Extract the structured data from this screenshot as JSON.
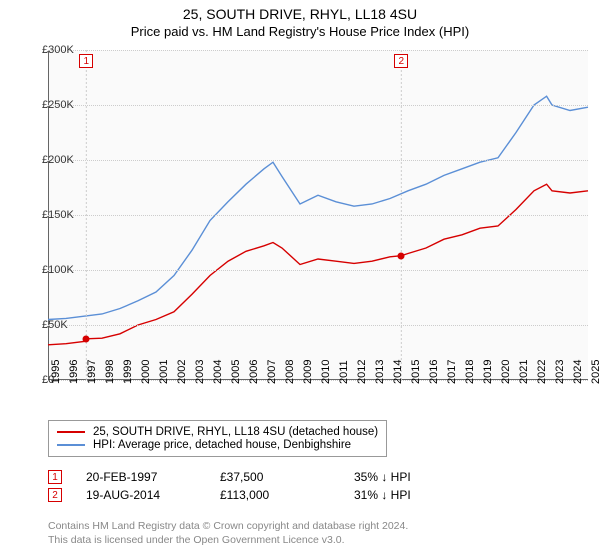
{
  "title": "25, SOUTH DRIVE, RHYL, LL18 4SU",
  "subtitle": "Price paid vs. HM Land Registry's House Price Index (HPI)",
  "chart": {
    "type": "line",
    "background_color": "#fafafa",
    "grid_color": "#cccccc",
    "axis_color": "#666666",
    "x_years": [
      1995,
      1996,
      1997,
      1998,
      1999,
      2000,
      2001,
      2002,
      2003,
      2004,
      2005,
      2006,
      2007,
      2008,
      2009,
      2010,
      2011,
      2012,
      2013,
      2014,
      2015,
      2016,
      2017,
      2018,
      2019,
      2020,
      2021,
      2022,
      2023,
      2024,
      2025
    ],
    "y_ticks": [
      0,
      50000,
      100000,
      150000,
      200000,
      250000,
      300000
    ],
    "y_tick_labels": [
      "£0",
      "£50K",
      "£100K",
      "£150K",
      "£200K",
      "£250K",
      "£300K"
    ],
    "ylim": [
      0,
      300000
    ],
    "label_fontsize": 11,
    "series": [
      {
        "name": "price_paid",
        "color": "#d60000",
        "line_width": 1.4,
        "data": [
          [
            1995,
            32000
          ],
          [
            1996,
            33000
          ],
          [
            1997,
            35000
          ],
          [
            1997.13,
            37500
          ],
          [
            1998,
            38000
          ],
          [
            1999,
            42000
          ],
          [
            2000,
            50000
          ],
          [
            2001,
            55000
          ],
          [
            2002,
            62000
          ],
          [
            2003,
            78000
          ],
          [
            2004,
            95000
          ],
          [
            2005,
            108000
          ],
          [
            2006,
            117000
          ],
          [
            2007,
            122000
          ],
          [
            2007.5,
            125000
          ],
          [
            2008,
            120000
          ],
          [
            2009,
            105000
          ],
          [
            2010,
            110000
          ],
          [
            2011,
            108000
          ],
          [
            2012,
            106000
          ],
          [
            2013,
            108000
          ],
          [
            2014,
            112000
          ],
          [
            2014.63,
            113000
          ],
          [
            2015,
            115000
          ],
          [
            2016,
            120000
          ],
          [
            2017,
            128000
          ],
          [
            2018,
            132000
          ],
          [
            2019,
            138000
          ],
          [
            2020,
            140000
          ],
          [
            2021,
            155000
          ],
          [
            2022,
            172000
          ],
          [
            2022.7,
            178000
          ],
          [
            2023,
            172000
          ],
          [
            2024,
            170000
          ],
          [
            2025,
            172000
          ]
        ]
      },
      {
        "name": "hpi",
        "color": "#5b8fd6",
        "line_width": 1.4,
        "data": [
          [
            1995,
            55000
          ],
          [
            1996,
            56000
          ],
          [
            1997,
            58000
          ],
          [
            1998,
            60000
          ],
          [
            1999,
            65000
          ],
          [
            2000,
            72000
          ],
          [
            2001,
            80000
          ],
          [
            2002,
            95000
          ],
          [
            2003,
            118000
          ],
          [
            2004,
            145000
          ],
          [
            2005,
            162000
          ],
          [
            2006,
            178000
          ],
          [
            2007,
            192000
          ],
          [
            2007.5,
            198000
          ],
          [
            2008,
            185000
          ],
          [
            2009,
            160000
          ],
          [
            2010,
            168000
          ],
          [
            2011,
            162000
          ],
          [
            2012,
            158000
          ],
          [
            2013,
            160000
          ],
          [
            2014,
            165000
          ],
          [
            2015,
            172000
          ],
          [
            2016,
            178000
          ],
          [
            2017,
            186000
          ],
          [
            2018,
            192000
          ],
          [
            2019,
            198000
          ],
          [
            2020,
            202000
          ],
          [
            2021,
            225000
          ],
          [
            2022,
            250000
          ],
          [
            2022.7,
            258000
          ],
          [
            2023,
            250000
          ],
          [
            2024,
            245000
          ],
          [
            2025,
            248000
          ]
        ]
      }
    ],
    "sale_markers": [
      {
        "n": "1",
        "year": 1997.13,
        "price": 37500,
        "color": "#d60000"
      },
      {
        "n": "2",
        "year": 2014.63,
        "price": 113000,
        "color": "#d60000"
      }
    ]
  },
  "legend": {
    "items": [
      {
        "color": "#d60000",
        "label": "25, SOUTH DRIVE, RHYL, LL18 4SU (detached house)"
      },
      {
        "color": "#5b8fd6",
        "label": "HPI: Average price, detached house, Denbighshire"
      }
    ]
  },
  "sales_table": {
    "rows": [
      {
        "n": "1",
        "color": "#d60000",
        "date": "20-FEB-1997",
        "price": "£37,500",
        "vs_hpi": "35% ↓ HPI"
      },
      {
        "n": "2",
        "color": "#d60000",
        "date": "19-AUG-2014",
        "price": "£113,000",
        "vs_hpi": "31% ↓ HPI"
      }
    ]
  },
  "footnote": {
    "line1": "Contains HM Land Registry data © Crown copyright and database right 2024.",
    "line2": "This data is licensed under the Open Government Licence v3.0."
  }
}
